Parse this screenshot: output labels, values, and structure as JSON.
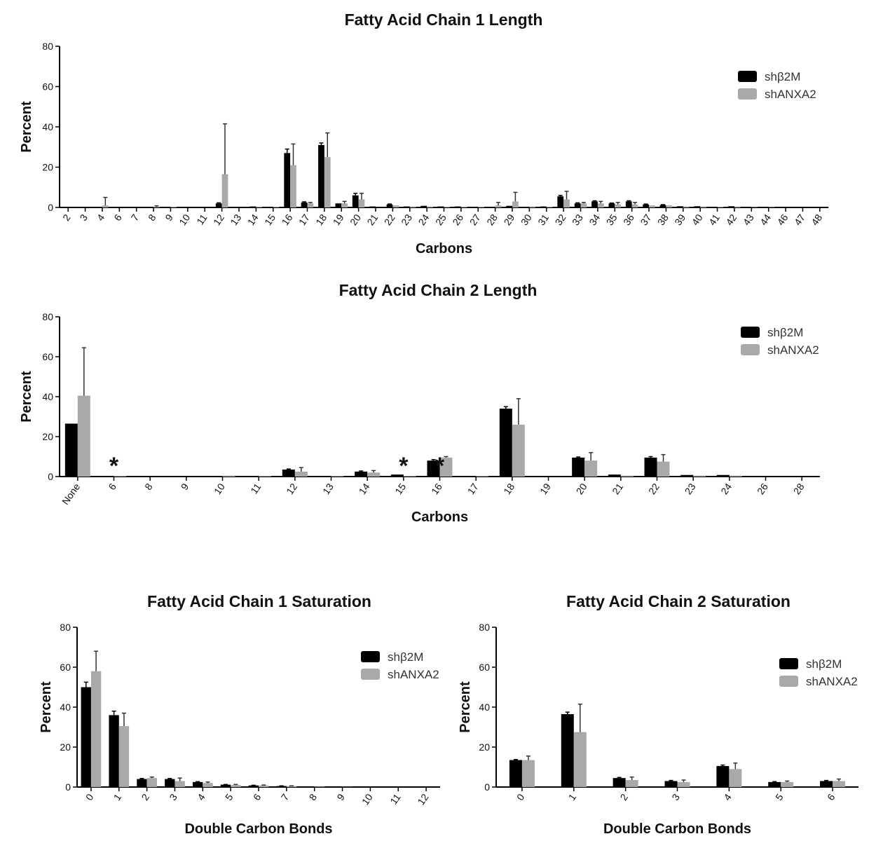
{
  "chart_data": [
    {
      "type": "bar",
      "title": "Fatty  Acid Chain 1 Length",
      "xlabel": "Carbons",
      "ylabel": "Percent",
      "ylim": [
        0,
        80
      ],
      "yticks": [
        0,
        20,
        40,
        60,
        80
      ],
      "legend": "top-right",
      "categories": [
        "2",
        "3",
        "4",
        "6",
        "7",
        "8",
        "9",
        "10",
        "11",
        "12",
        "13",
        "14",
        "15",
        "16",
        "17",
        "18",
        "19",
        "20",
        "21",
        "22",
        "23",
        "24",
        "25",
        "26",
        "27",
        "28",
        "29",
        "30",
        "31",
        "32",
        "33",
        "34",
        "35",
        "36",
        "37",
        "38",
        "39",
        "40",
        "41",
        "42",
        "43",
        "44",
        "46",
        "47",
        "48"
      ],
      "series": [
        {
          "name": "shβ2M",
          "values": [
            0,
            0,
            0,
            0,
            0,
            0,
            0,
            0,
            0,
            2,
            0.3,
            0.5,
            0.2,
            27,
            2.5,
            31,
            2,
            6,
            0.5,
            1.5,
            0.5,
            0.8,
            0.5,
            0.5,
            0.2,
            0.3,
            0.8,
            0.3,
            0.5,
            5.5,
            2,
            3,
            2,
            3,
            1.5,
            1.2,
            0.6,
            0.6,
            0.3,
            0.6,
            0.2,
            0.2,
            0,
            0,
            0
          ],
          "errors": [
            0,
            0,
            0,
            0,
            0,
            0,
            0,
            0,
            0,
            0.3,
            0,
            0,
            0,
            2,
            0.3,
            1,
            0,
            1,
            0,
            0.2,
            0,
            0,
            0,
            0,
            0,
            0,
            0,
            0,
            0,
            0.5,
            0.3,
            0.3,
            0.2,
            0.3,
            0.2,
            0.2,
            0,
            0,
            0,
            0,
            0,
            0,
            0,
            0,
            0
          ]
        },
        {
          "name": "shANXA2",
          "values": [
            0,
            0,
            1,
            0,
            0,
            0.3,
            0.3,
            0,
            0,
            16.5,
            0,
            0.3,
            0.3,
            21,
            2,
            25,
            2,
            4,
            0,
            1,
            0.5,
            0.5,
            0.3,
            0.3,
            0.3,
            1,
            3,
            0.5,
            0.3,
            4,
            2,
            2,
            1.5,
            1.5,
            1,
            1,
            0.5,
            0.5,
            0.3,
            0.5,
            0.2,
            0.2,
            0,
            0,
            0
          ],
          "errors": [
            0,
            0,
            4,
            0,
            0,
            0.5,
            0,
            0,
            0,
            25,
            0,
            0,
            0,
            10.5,
            0.5,
            12,
            1,
            3,
            0,
            0,
            0,
            0,
            0,
            0,
            0,
            1.5,
            4.5,
            0,
            0,
            4,
            0.5,
            1,
            1,
            1,
            0,
            0,
            0,
            0,
            0,
            0,
            0,
            0,
            0,
            0,
            0
          ]
        }
      ]
    },
    {
      "type": "bar",
      "title": "Fatty Acid Chain 2 Length",
      "xlabel": "Carbons",
      "ylabel": "Percent",
      "ylim": [
        0,
        80
      ],
      "yticks": [
        0,
        20,
        40,
        60,
        80
      ],
      "legend": "top-right",
      "categories": [
        "None",
        "6",
        "8",
        "9",
        "10",
        "11",
        "12",
        "13",
        "14",
        "15",
        "16",
        "17",
        "18",
        "19",
        "20",
        "21",
        "22",
        "23",
        "24",
        "26",
        "28"
      ],
      "series": [
        {
          "name": "shβ2M",
          "values": [
            26.5,
            0.3,
            0,
            0,
            0.3,
            0.3,
            3.5,
            0.3,
            2.5,
            1,
            8,
            0.3,
            34,
            0,
            9.5,
            1,
            9.5,
            0.8,
            0.8,
            0,
            0
          ],
          "errors": [
            0,
            0,
            0,
            0,
            0,
            0,
            0.3,
            0,
            0.3,
            0,
            0.5,
            0,
            1,
            0,
            0.3,
            0,
            0.5,
            0,
            0,
            0,
            0
          ]
        },
        {
          "name": "shANXA2",
          "values": [
            40.5,
            0.3,
            0,
            0,
            0.5,
            0.3,
            2.5,
            0.3,
            2,
            0.3,
            9.5,
            0.3,
            26,
            0,
            8,
            0.5,
            7.5,
            0.5,
            0.5,
            0,
            0
          ],
          "errors": [
            24,
            0,
            0,
            0,
            0,
            0,
            2,
            0,
            1,
            0,
            0.5,
            0,
            13,
            0,
            4,
            0,
            3.5,
            0,
            0,
            0,
            0
          ]
        }
      ],
      "annotations": [
        {
          "text": "*",
          "category": "6"
        },
        {
          "text": "*",
          "category": "15"
        },
        {
          "text": "*",
          "category": "16"
        }
      ]
    },
    {
      "type": "bar",
      "title": "Fatty  Acid  Chain 1 Saturation",
      "xlabel": "Double Carbon  Bonds",
      "ylabel": "Percent",
      "ylim": [
        0,
        80
      ],
      "yticks": [
        0,
        20,
        40,
        60,
        80
      ],
      "legend": "top-right",
      "categories": [
        "0",
        "1",
        "2",
        "3",
        "4",
        "5",
        "6",
        "7",
        "8",
        "9",
        "10",
        "11",
        "12"
      ],
      "series": [
        {
          "name": "shβ2M",
          "values": [
            50,
            36,
            4,
            4,
            2.5,
            1.2,
            0.8,
            0.5,
            0.2,
            0.1,
            0,
            0,
            0
          ],
          "errors": [
            2.5,
            2,
            0.3,
            0.3,
            0.2,
            0.1,
            0.1,
            0.1,
            0,
            0,
            0,
            0,
            0
          ]
        },
        {
          "name": "shANXA2",
          "values": [
            58,
            30.5,
            4.5,
            3,
            2,
            1,
            0.8,
            0.5,
            0.2,
            0.1,
            0,
            0,
            0
          ],
          "errors": [
            10,
            6.5,
            0.5,
            1.5,
            0.5,
            0.3,
            0.2,
            0.1,
            0,
            0,
            0,
            0,
            0
          ]
        }
      ]
    },
    {
      "type": "bar",
      "title": "Fatty Acid Chain 2 Saturation",
      "xlabel": "Double Carbon  Bonds",
      "ylabel": "Percent",
      "ylim": [
        0,
        80
      ],
      "yticks": [
        0,
        20,
        40,
        60,
        80
      ],
      "legend": "top-right",
      "categories": [
        "0",
        "1",
        "2",
        "3",
        "4",
        "5",
        "6"
      ],
      "series": [
        {
          "name": "shβ2M",
          "values": [
            13.5,
            36.5,
            4.5,
            3,
            10.5,
            2.5,
            3
          ],
          "errors": [
            0.3,
            1,
            0.3,
            0.3,
            0.5,
            0.2,
            0.3
          ]
        },
        {
          "name": "shANXA2",
          "values": [
            13.5,
            27.5,
            3.5,
            2.5,
            9,
            2.5,
            3
          ],
          "errors": [
            2,
            14,
            1.5,
            1,
            3,
            0.5,
            1
          ]
        }
      ]
    }
  ],
  "colors": {
    "shβ2M": "#000000",
    "shANXA2": "#a9a9a9"
  }
}
